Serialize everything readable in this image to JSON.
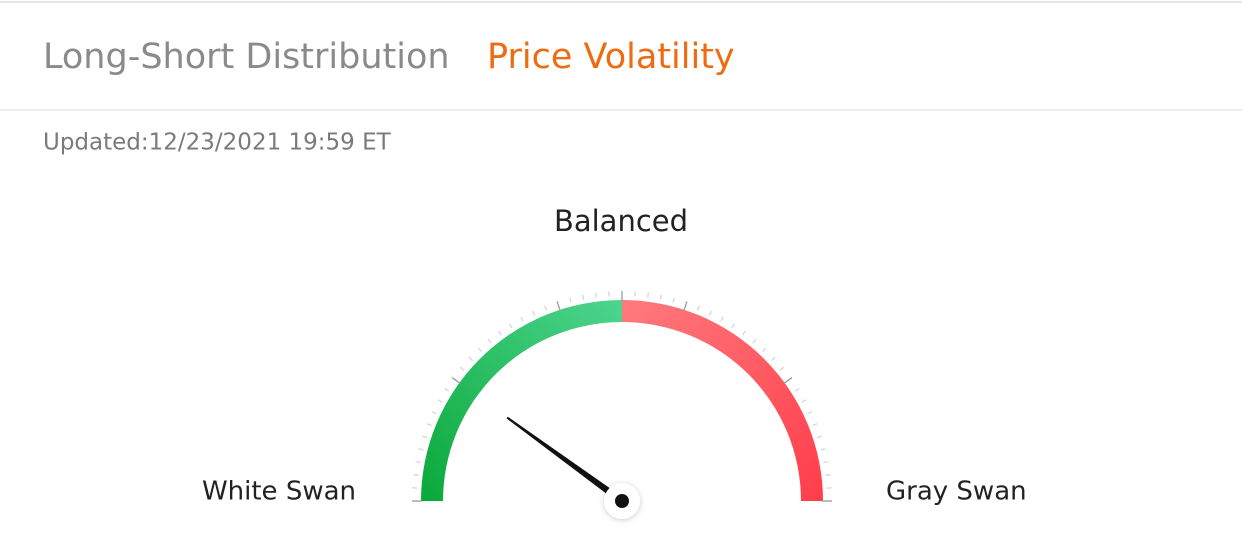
{
  "tabs": [
    "Long-Short Distribution",
    "Price Volatility"
  ],
  "updated": "Updated:12/23/2021 19:59 ET",
  "gauge": {
    "status": "Balanced",
    "left_label": "White Swan",
    "right_label": "Gray Swan",
    "range": [
      0,
      100
    ],
    "value": 20
  }
}
